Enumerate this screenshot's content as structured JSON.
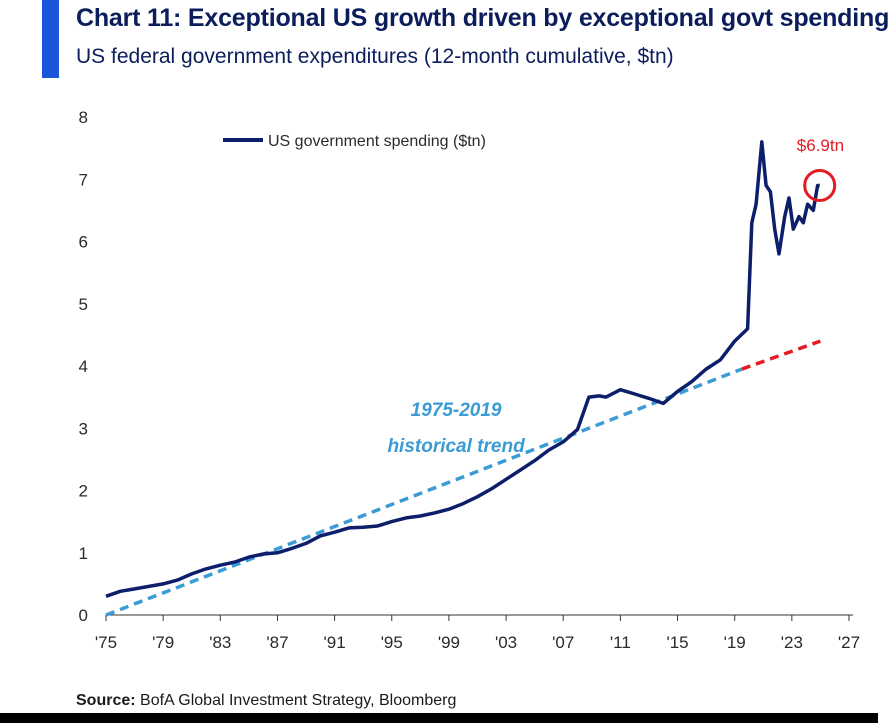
{
  "header": {
    "title": "Chart 11: Exceptional US growth driven by exceptional govt spending",
    "subtitle": "US federal government expenditures (12-month cumulative, $tn)"
  },
  "footer": {
    "source_label": "Source:",
    "source_text": " BofA Global Investment Strategy, Bloomberg"
  },
  "colors": {
    "accent": "#1a56db",
    "series": "#0d1f6b",
    "trend": "#3a9bd5",
    "projection": "#e31b23",
    "callout": "#e31b23"
  },
  "chart_data": {
    "type": "line",
    "title": "Chart 11: Exceptional US growth driven by exceptional govt spending",
    "subtitle": "US federal government expenditures (12-month cumulative, $tn)",
    "xlabel": "",
    "ylabel": "",
    "xlim": [
      1975,
      2028
    ],
    "ylim": [
      0,
      8
    ],
    "x_ticks": [
      1975,
      1979,
      1983,
      1987,
      1991,
      1995,
      1999,
      2003,
      2007,
      2011,
      2015,
      2019,
      2023,
      2027
    ],
    "x_tick_labels": [
      "'75",
      "'79",
      "'83",
      "'87",
      "'91",
      "'95",
      "'99",
      "'03",
      "'07",
      "'11",
      "'15",
      "'19",
      "'23",
      "'27"
    ],
    "y_ticks": [
      0,
      1,
      2,
      3,
      4,
      5,
      6,
      7,
      8
    ],
    "y_tick_labels": [
      "0",
      "1",
      "2",
      "3",
      "4",
      "5",
      "6",
      "7",
      "8"
    ],
    "grid": false,
    "legend_position": "top-left",
    "series": [
      {
        "name": "US government spending ($tn)",
        "style": "solid",
        "x": [
          1975,
          1976,
          1977,
          1978,
          1979,
          1980,
          1981,
          1982,
          1983,
          1984,
          1985,
          1986,
          1987,
          1988,
          1989,
          1990,
          1991,
          1992,
          1993,
          1994,
          1995,
          1996,
          1997,
          1998,
          1999,
          2000,
          2001,
          2002,
          2003,
          2004,
          2005,
          2006,
          2007,
          2008,
          2008.8,
          2009.5,
          2010,
          2011,
          2012,
          2013,
          2014,
          2015,
          2016,
          2017,
          2018,
          2019,
          2019.9,
          2020.2,
          2020.5,
          2020.9,
          2021.2,
          2021.5,
          2021.8,
          2022.1,
          2022.5,
          2022.8,
          2023.1,
          2023.5,
          2023.8,
          2024.1,
          2024.5,
          2024.8,
          2024.95
        ],
        "y": [
          0.3,
          0.38,
          0.42,
          0.46,
          0.5,
          0.56,
          0.66,
          0.74,
          0.8,
          0.85,
          0.93,
          0.98,
          1.0,
          1.07,
          1.15,
          1.27,
          1.33,
          1.4,
          1.41,
          1.43,
          1.5,
          1.56,
          1.59,
          1.64,
          1.7,
          1.79,
          1.9,
          2.03,
          2.18,
          2.33,
          2.48,
          2.65,
          2.78,
          2.98,
          3.5,
          3.52,
          3.5,
          3.62,
          3.55,
          3.48,
          3.4,
          3.59,
          3.75,
          3.95,
          4.1,
          4.4,
          4.6,
          6.3,
          6.6,
          7.6,
          6.9,
          6.8,
          6.2,
          5.8,
          6.4,
          6.7,
          6.2,
          6.4,
          6.3,
          6.6,
          6.5,
          6.9,
          6.9
        ]
      },
      {
        "name": "1975-2019 historical trend",
        "style": "dashed",
        "x": [
          1975,
          2019.5
        ],
        "y": [
          0.0,
          3.95
        ]
      },
      {
        "name": "",
        "style": "dashed",
        "x": [
          2019.5,
          2025
        ],
        "y": [
          3.95,
          4.4
        ]
      }
    ],
    "annotations": [
      {
        "text": "1975-2019",
        "x": 1999.5,
        "y": 3.2
      },
      {
        "text": "historical trend",
        "x": 1999.5,
        "y": 2.62
      },
      {
        "text": "$6.9tn",
        "x": 2025,
        "y": 7.45
      }
    ],
    "highlight_point": {
      "x": 2024.95,
      "y": 6.9
    }
  }
}
